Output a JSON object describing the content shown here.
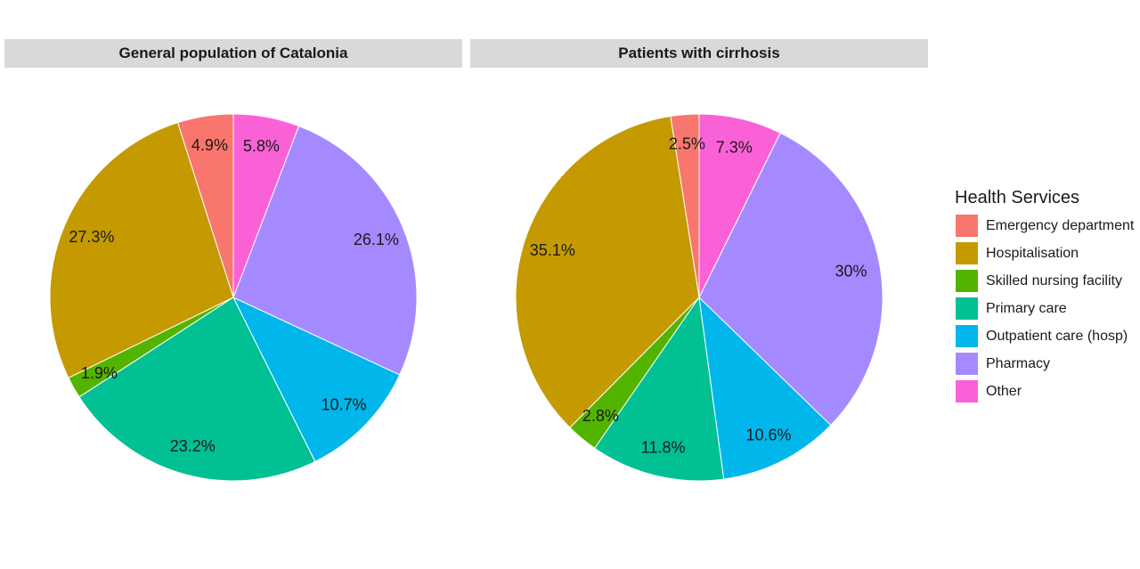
{
  "chart_data": [
    {
      "type": "pie",
      "title": "General population of Catalonia",
      "categories": [
        "Emergency department",
        "Hospitalisation",
        "Skilled nursing facility",
        "Primary care",
        "Outpatient care (hosp)",
        "Pharmacy",
        "Other"
      ],
      "values": [
        4.9,
        27.3,
        1.9,
        23.2,
        10.7,
        26.1,
        5.8
      ],
      "labels": [
        "4.9%",
        "27.3%",
        "1.9%",
        "23.2%",
        "10.7%",
        "26.1%",
        "5.8%"
      ]
    },
    {
      "type": "pie",
      "title": "Patients with cirrhosis",
      "categories": [
        "Emergency department",
        "Hospitalisation",
        "Skilled nursing facility",
        "Primary care",
        "Outpatient care (hosp)",
        "Pharmacy",
        "Other"
      ],
      "values": [
        2.5,
        35.1,
        2.8,
        11.8,
        10.6,
        30,
        7.3
      ],
      "labels": [
        "2.5%",
        "35.1%",
        "2.8%",
        "11.8%",
        "10.6%",
        "30%",
        "7.3%"
      ]
    }
  ],
  "legend": {
    "title": "Health Services",
    "position": "right",
    "items": [
      {
        "label": "Emergency department",
        "color": "#F8766D"
      },
      {
        "label": "Hospitalisation",
        "color": "#C49A00"
      },
      {
        "label": "Skilled nursing facility",
        "color": "#53B400"
      },
      {
        "label": "Primary care",
        "color": "#00C094"
      },
      {
        "label": "Outpatient care (hosp)",
        "color": "#00B6EB"
      },
      {
        "label": "Pharmacy",
        "color": "#A58AFF"
      },
      {
        "label": "Other",
        "color": "#FB61D7"
      }
    ]
  }
}
